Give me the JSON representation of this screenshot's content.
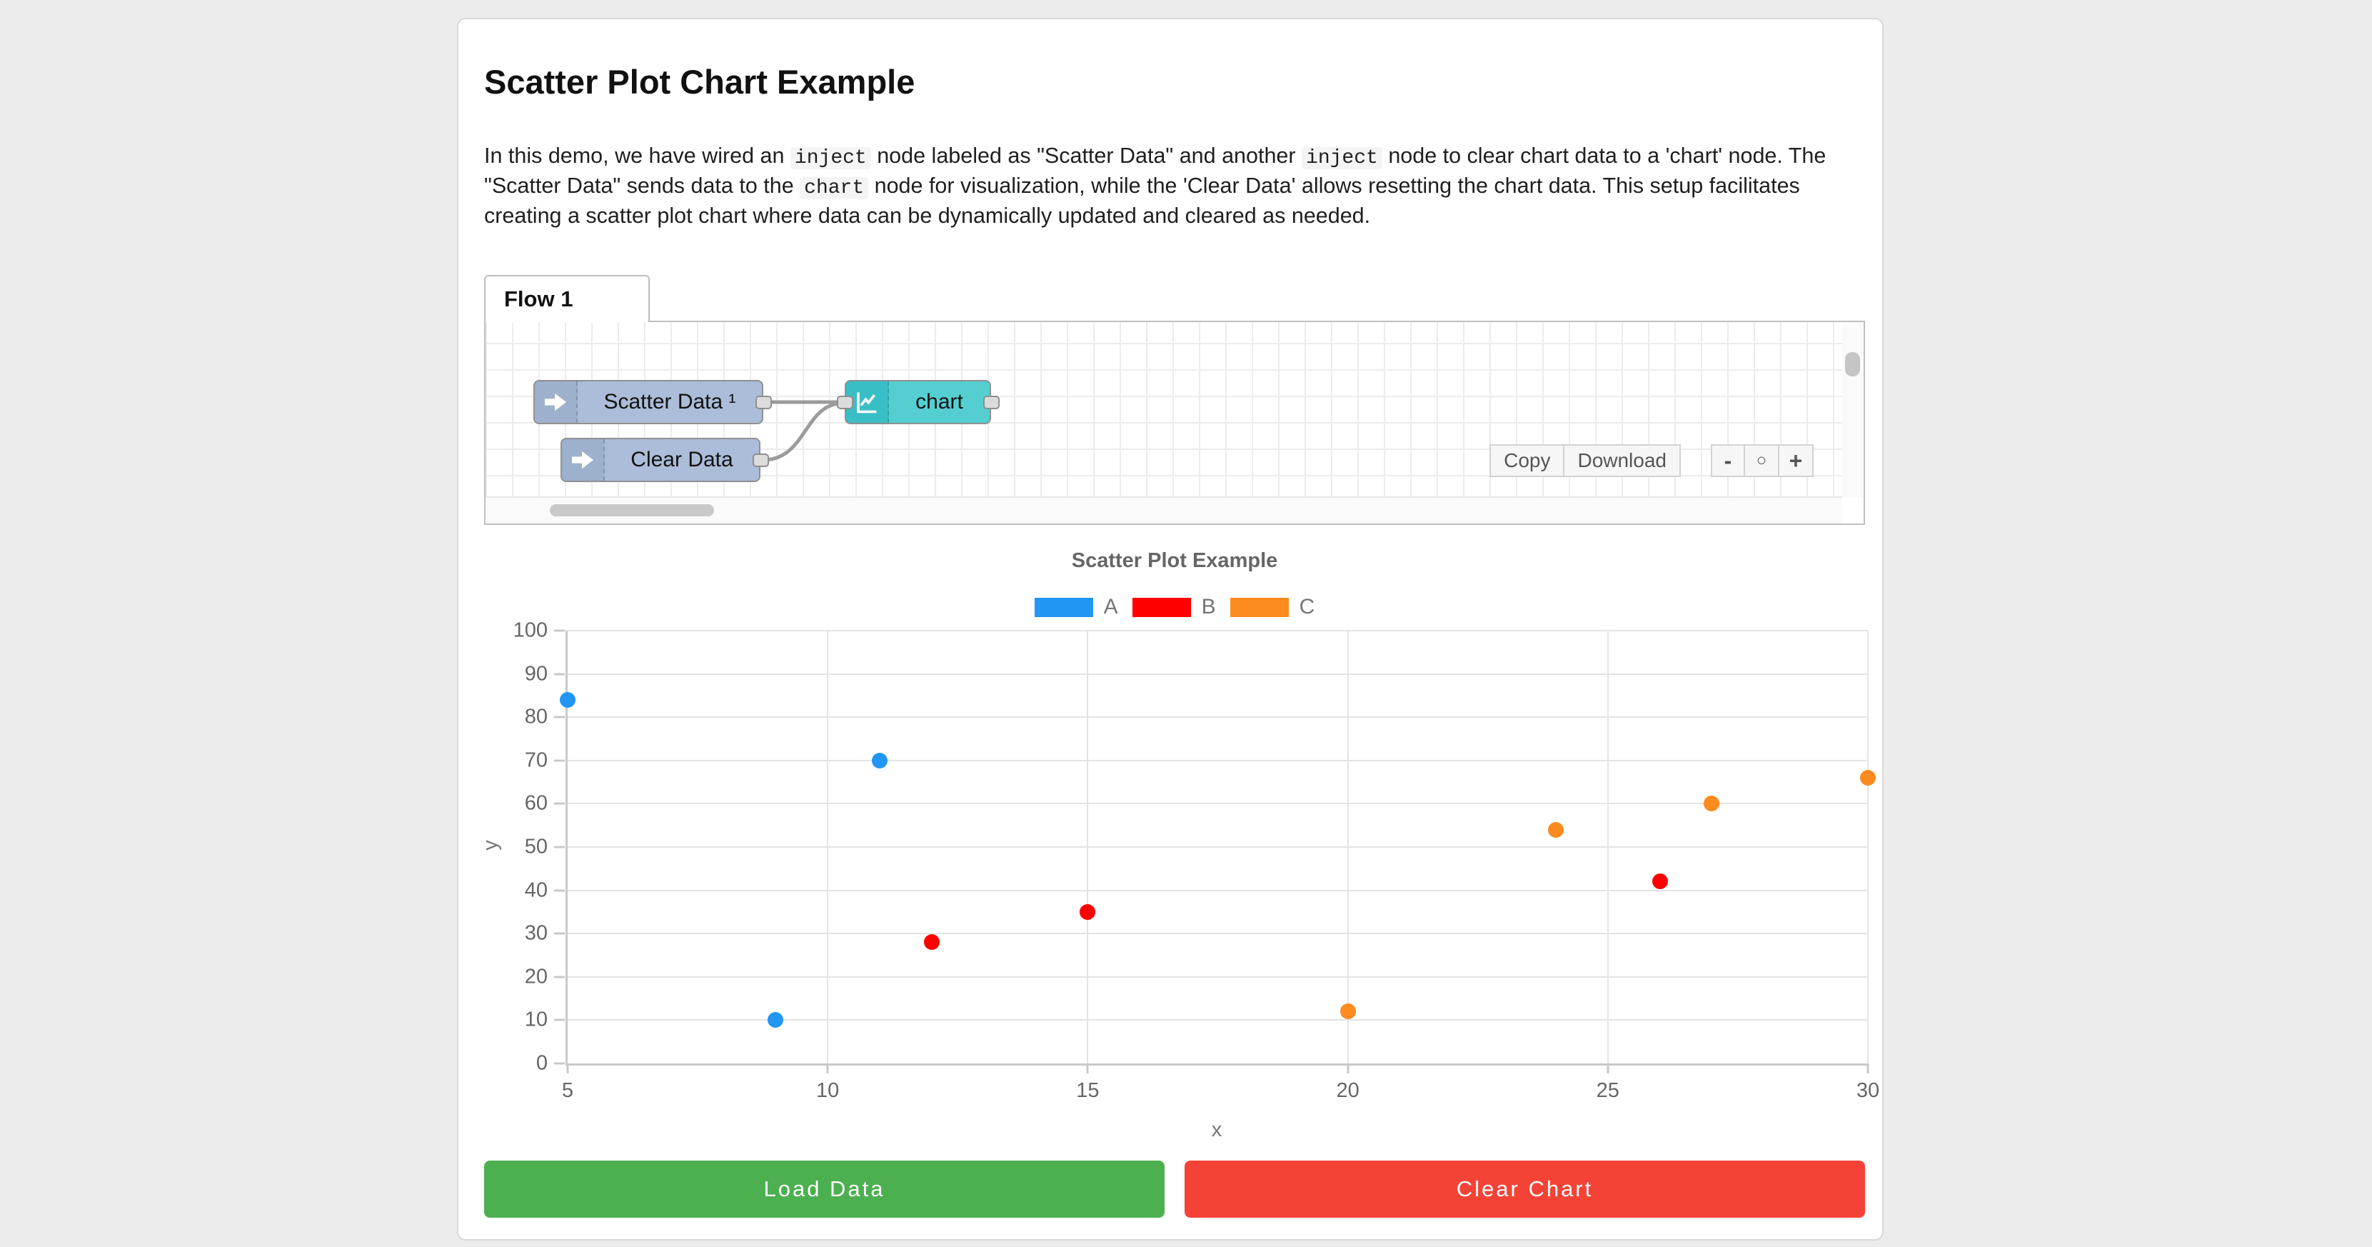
{
  "doc": {
    "title": "Scatter Plot Chart Example"
  },
  "intro": {
    "segments": [
      {
        "type": "text",
        "text": "In this demo, we have wired an "
      },
      {
        "type": "code",
        "text": "inject"
      },
      {
        "type": "text",
        "text": " node labeled as \"Scatter Data\" and another "
      },
      {
        "type": "code",
        "text": "inject"
      },
      {
        "type": "text",
        "text": " node to clear chart data to a 'chart' node. The \"Scatter Data\" sends data to the "
      },
      {
        "type": "code",
        "text": "chart"
      },
      {
        "type": "text",
        "text": " node for visualization, while the 'Clear Data' allows resetting the chart data. This setup facilitates creating a scatter plot chart where data can be dynamically updated and cleared as needed."
      }
    ]
  },
  "flow": {
    "tab_label": "Flow 1",
    "nodes": [
      {
        "id": "scatter-inject",
        "type": "inject",
        "label": "Scatter Data ¹",
        "icon": "arrow-right-icon"
      },
      {
        "id": "clear-inject",
        "type": "inject",
        "label": "Clear Data",
        "icon": "arrow-right-icon"
      },
      {
        "id": "chart",
        "type": "chart",
        "label": "chart",
        "icon": "line-chart-icon"
      }
    ],
    "buttons": {
      "copy_label": "Copy",
      "download_label": "Download",
      "zoom_out_label": "-",
      "zoom_reset_label": "○",
      "zoom_in_label": "+"
    },
    "colors": {
      "inject_node": "#abbdd8",
      "chart_node": "#55ced2",
      "wire": "#9b9b9b"
    }
  },
  "chart_data": {
    "type": "scatter",
    "title": "Scatter Plot Example",
    "xlabel": "x",
    "ylabel": "y",
    "xlim": [
      5,
      30
    ],
    "ylim": [
      0,
      100
    ],
    "x_ticks": [
      5,
      10,
      15,
      20,
      25,
      30
    ],
    "y_ticks": [
      0,
      10,
      20,
      30,
      40,
      50,
      60,
      70,
      80,
      90,
      100
    ],
    "grid": true,
    "legend_position": "top",
    "series": [
      {
        "name": "A",
        "color": "#2196f3",
        "points": [
          [
            5,
            84
          ],
          [
            9,
            10
          ],
          [
            11,
            70
          ]
        ]
      },
      {
        "name": "B",
        "color": "#ff0000",
        "points": [
          [
            12,
            28
          ],
          [
            15,
            35
          ],
          [
            26,
            42
          ]
        ]
      },
      {
        "name": "C",
        "color": "#fb8a1f",
        "points": [
          [
            20,
            12
          ],
          [
            24,
            54
          ],
          [
            27,
            60
          ],
          [
            30,
            66
          ]
        ]
      }
    ]
  },
  "actions": {
    "load_label": "Load Data",
    "load_color": "#4caf50",
    "clear_label": "Clear Chart",
    "clear_color": "#f44336"
  }
}
